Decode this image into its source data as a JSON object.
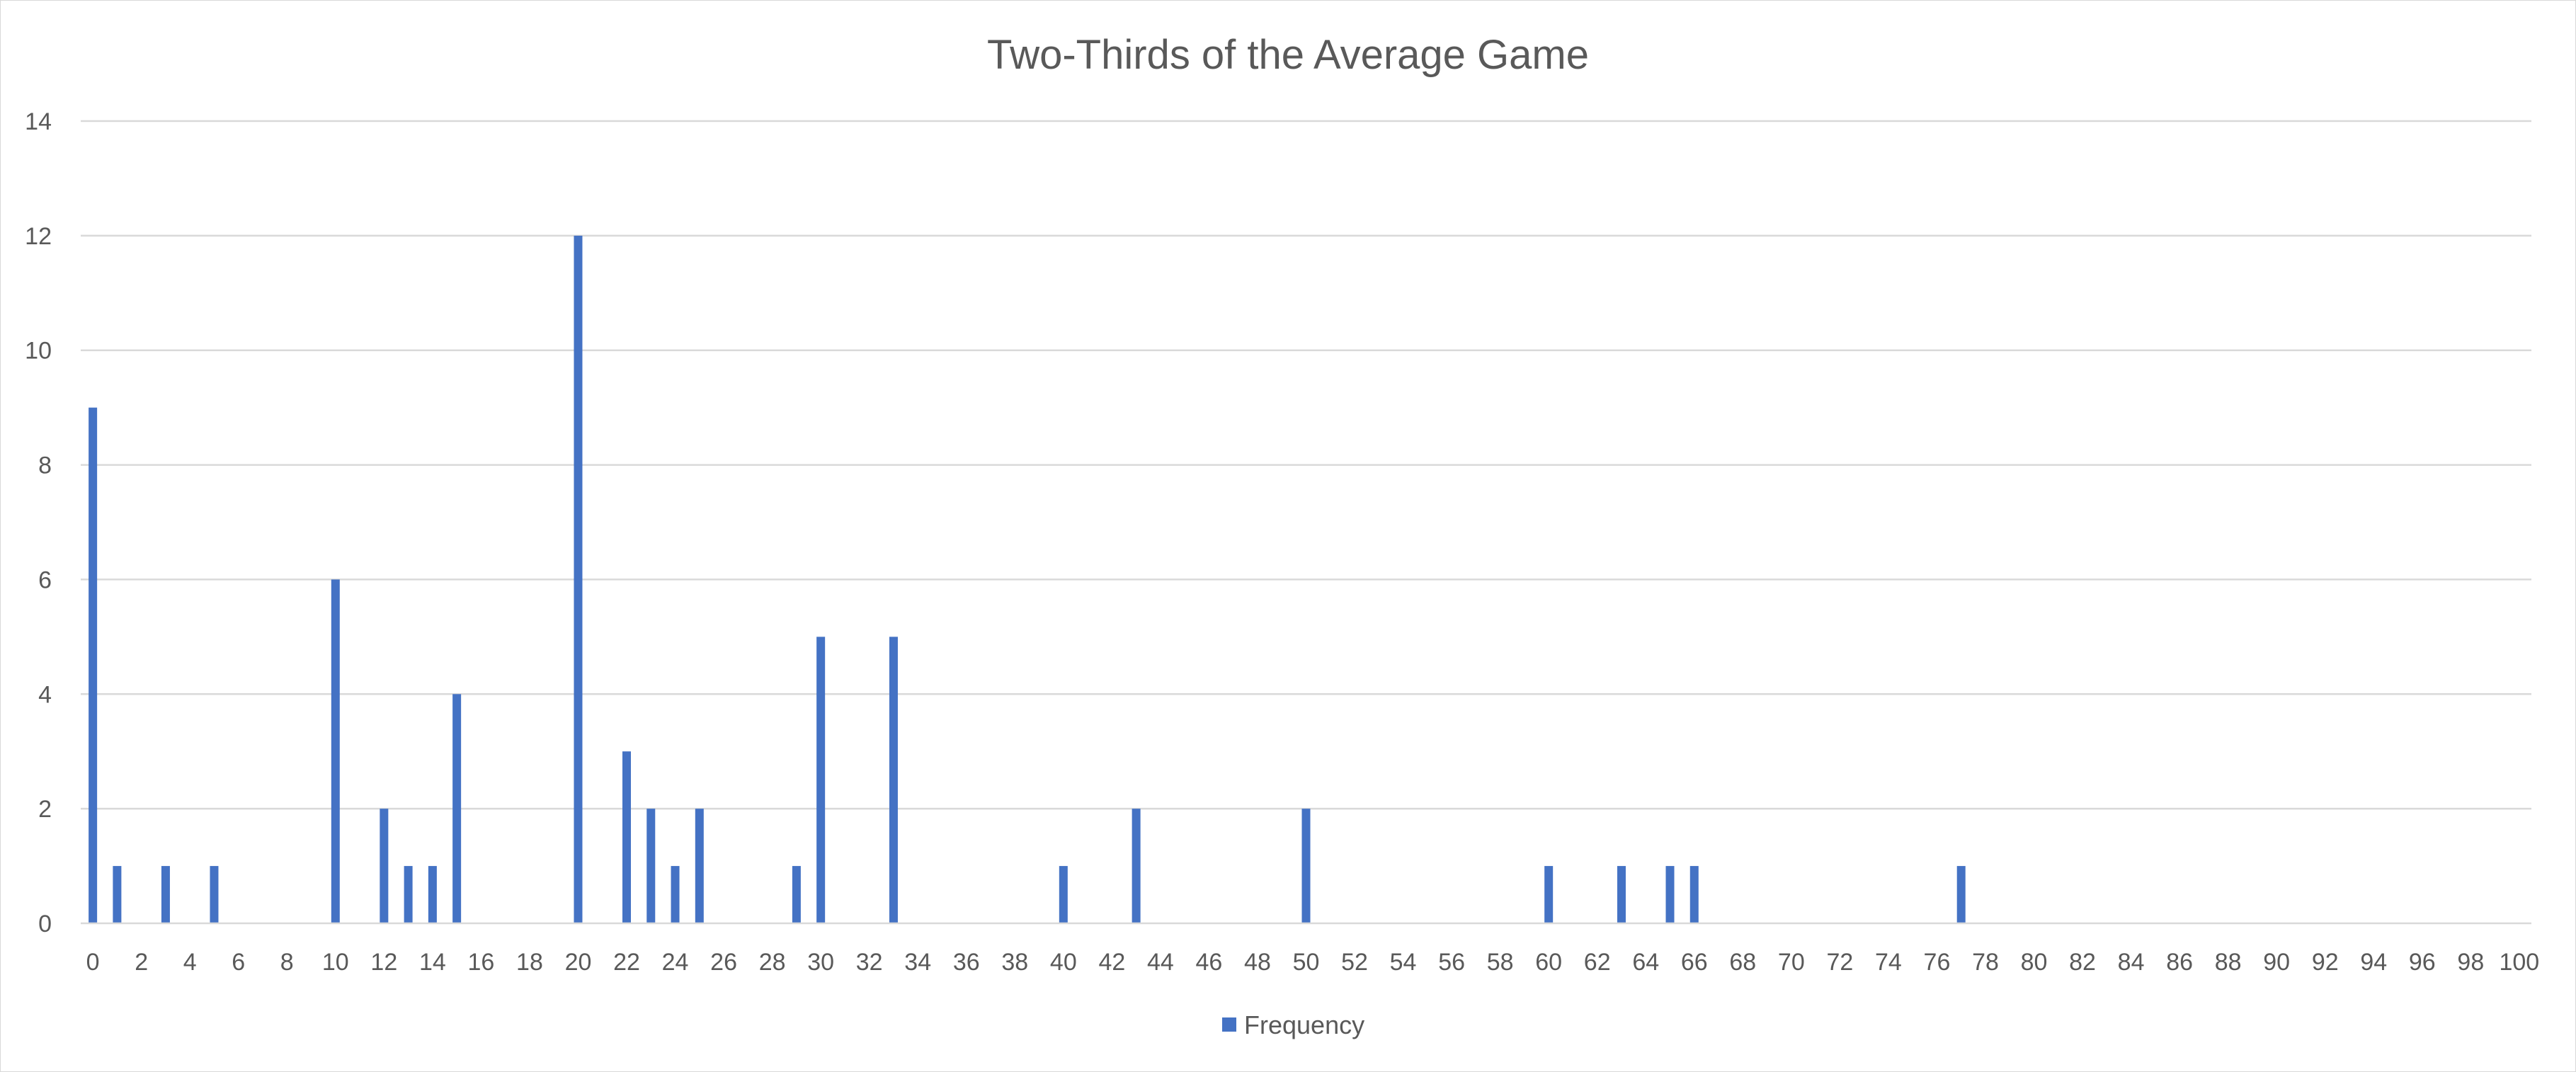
{
  "chart_data": {
    "type": "bar",
    "title": "Two-Thirds of the Average Game",
    "xlabel": "",
    "ylabel": "",
    "ylim": [
      0,
      14
    ],
    "y_ticks": [
      0,
      2,
      4,
      6,
      8,
      10,
      12,
      14
    ],
    "xlim": [
      0,
      100
    ],
    "x_tick_labels": [
      "0",
      "2",
      "4",
      "6",
      "8",
      "10",
      "12",
      "14",
      "16",
      "18",
      "20",
      "22",
      "24",
      "26",
      "28",
      "30",
      "32",
      "34",
      "36",
      "38",
      "40",
      "42",
      "44",
      "46",
      "48",
      "50",
      "52",
      "54",
      "56",
      "58",
      "60",
      "62",
      "64",
      "66",
      "68",
      "70",
      "72",
      "74",
      "76",
      "78",
      "80",
      "82",
      "84",
      "86",
      "88",
      "90",
      "92",
      "94",
      "96",
      "98",
      "100"
    ],
    "grid": true,
    "legend_position": "bottom",
    "series": [
      {
        "name": "Frequency",
        "color": "#4472c4",
        "points": [
          {
            "x": 0,
            "y": 9
          },
          {
            "x": 1,
            "y": 1
          },
          {
            "x": 3,
            "y": 1
          },
          {
            "x": 5,
            "y": 1
          },
          {
            "x": 10,
            "y": 6
          },
          {
            "x": 12,
            "y": 2
          },
          {
            "x": 13,
            "y": 1
          },
          {
            "x": 14,
            "y": 1
          },
          {
            "x": 15,
            "y": 4
          },
          {
            "x": 20,
            "y": 12
          },
          {
            "x": 22,
            "y": 3
          },
          {
            "x": 23,
            "y": 2
          },
          {
            "x": 24,
            "y": 1
          },
          {
            "x": 25,
            "y": 2
          },
          {
            "x": 29,
            "y": 1
          },
          {
            "x": 30,
            "y": 5
          },
          {
            "x": 33,
            "y": 5
          },
          {
            "x": 40,
            "y": 1
          },
          {
            "x": 43,
            "y": 2
          },
          {
            "x": 50,
            "y": 2
          },
          {
            "x": 60,
            "y": 1
          },
          {
            "x": 63,
            "y": 1
          },
          {
            "x": 65,
            "y": 1
          },
          {
            "x": 66,
            "y": 1
          },
          {
            "x": 77,
            "y": 1
          }
        ]
      }
    ]
  }
}
